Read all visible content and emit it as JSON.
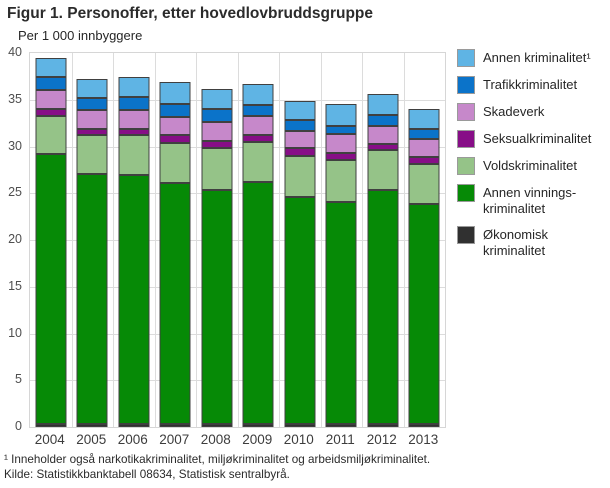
{
  "title": "Figur 1. Personoffer, etter hovedlovbruddsgruppe",
  "chart_data": {
    "type": "bar",
    "stacked": true,
    "unit_label": "Per 1 000 innbyggere",
    "categories": [
      "2004",
      "2005",
      "2006",
      "2007",
      "2008",
      "2009",
      "2010",
      "2011",
      "2012",
      "2013"
    ],
    "series": [
      {
        "name": "Økonomisk kriminalitet",
        "color": "#303030",
        "values": [
          0.3,
          0.3,
          0.3,
          0.3,
          0.3,
          0.3,
          0.3,
          0.3,
          0.3,
          0.3
        ]
      },
      {
        "name": "Annen vinningskriminalitet",
        "color": "#068a06",
        "values": [
          28.9,
          26.8,
          26.7,
          25.8,
          25.0,
          25.9,
          24.3,
          23.8,
          25.0,
          23.5
        ]
      },
      {
        "name": "Voldskriminalitet",
        "color": "#95c388",
        "values": [
          4.1,
          4.1,
          4.2,
          4.3,
          4.5,
          4.3,
          4.4,
          4.5,
          4.3,
          4.3
        ]
      },
      {
        "name": "Seksualkriminalitet",
        "color": "#870e87",
        "values": [
          0.7,
          0.7,
          0.7,
          0.8,
          0.8,
          0.7,
          0.8,
          0.7,
          0.7,
          0.8
        ]
      },
      {
        "name": "Skadeverk",
        "color": "#c688ca",
        "values": [
          2.0,
          2.0,
          2.0,
          2.0,
          2.0,
          2.1,
          1.9,
          2.0,
          1.9,
          1.9
        ]
      },
      {
        "name": "Trafikkriminalitet",
        "color": "#0b73c9",
        "values": [
          1.4,
          1.3,
          1.4,
          1.4,
          1.4,
          1.1,
          1.1,
          0.9,
          1.2,
          1.1
        ]
      },
      {
        "name": "Annen kriminalitet¹",
        "color": "#5fb4e4",
        "values": [
          2.1,
          2.0,
          2.1,
          2.3,
          2.2,
          2.3,
          2.1,
          2.3,
          2.2,
          2.1
        ]
      }
    ],
    "ylim": [
      0,
      40
    ],
    "ytick_step": 5,
    "grid": true,
    "legend_position": "right"
  },
  "legend": {
    "items": [
      {
        "label": "Annen kriminalitet¹",
        "color": "#5fb4e4"
      },
      {
        "label": "Trafikkriminalitet",
        "color": "#0b73c9"
      },
      {
        "label": "Skadeverk",
        "color": "#c688ca"
      },
      {
        "label": "Seksualkriminalitet",
        "color": "#870e87"
      },
      {
        "label": "Voldskriminalitet",
        "color": "#95c388"
      },
      {
        "label": "Annen vinnings-\nkriminalitet",
        "color": "#068a06"
      },
      {
        "label": "Økonomisk\nkriminalitet",
        "color": "#303030"
      }
    ]
  },
  "footnotes": {
    "note1": "¹ Inneholder også narkotikakriminalitet, miljøkriminalitet og arbeidsmiljøkriminalitet.",
    "source": "Kilde: Statistikkbanktabell 08634, Statistisk sentralbyrå."
  }
}
